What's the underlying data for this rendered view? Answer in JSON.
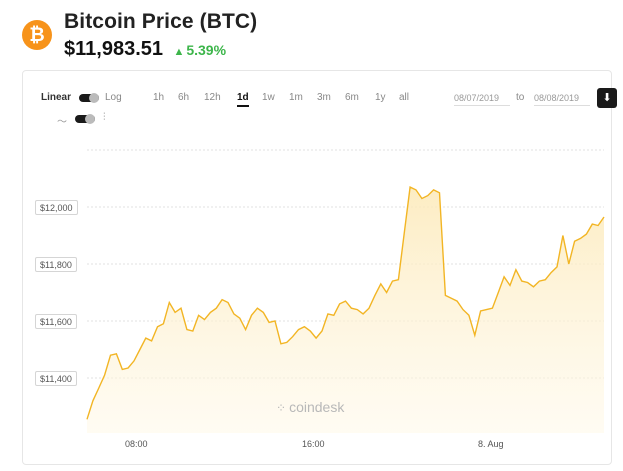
{
  "header": {
    "logo_symbol": "₿",
    "title": "Bitcoin Price (BTC)",
    "price": "$11,983.51",
    "change_arrow": "▲",
    "change": "5.39%",
    "accent_color": "#f7931a",
    "up_color": "#3cb54a"
  },
  "toolbar": {
    "scale_linear": "Linear",
    "scale_log": "Log",
    "ranges": [
      "1h",
      "6h",
      "12h",
      "1d",
      "1w",
      "1m",
      "3m",
      "6m",
      "1y",
      "all"
    ],
    "active_range": "1d",
    "date_from": "08/07/2019",
    "to_label": "to",
    "date_to": "08/08/2019",
    "download_icon": "download-icon",
    "chart_type_icons": [
      "line-chart-icon",
      "candlestick-icon"
    ]
  },
  "watermark": "coindesk",
  "chart_data": {
    "type": "area",
    "title": "",
    "xlabel": "",
    "ylabel": "",
    "x_tick_labels": [
      "08:00",
      "16:00",
      "8. Aug"
    ],
    "y_tick_labels": [
      "$11,400",
      "$11,600",
      "$11,800",
      "$12,000"
    ],
    "ylim": [
      11250,
      12200
    ],
    "series": [
      {
        "name": "",
        "color": "#f2b524",
        "values": [
          11255,
          11320,
          11365,
          11410,
          11480,
          11485,
          11430,
          11435,
          11460,
          11500,
          11540,
          11530,
          11580,
          11590,
          11665,
          11630,
          11645,
          11570,
          11565,
          11620,
          11605,
          11630,
          11645,
          11675,
          11665,
          11625,
          11610,
          11570,
          11620,
          11645,
          11630,
          11595,
          11600,
          11520,
          11525,
          11545,
          11570,
          11580,
          11565,
          11540,
          11565,
          11625,
          11620,
          11660,
          11670,
          11645,
          11640,
          11625,
          11645,
          11690,
          11730,
          11700,
          11740,
          11745,
          11910,
          12070,
          12060,
          12030,
          12040,
          12060,
          12050,
          11690,
          11680,
          11670,
          11640,
          11620,
          11550,
          11635,
          11640,
          11645,
          11700,
          11755,
          11725,
          11780,
          11740,
          11735,
          11720,
          11740,
          11745,
          11770,
          11790,
          11900,
          11800,
          11880,
          11890,
          11905,
          11940,
          11935,
          11965
        ]
      }
    ],
    "grid": true,
    "legend": "none"
  }
}
